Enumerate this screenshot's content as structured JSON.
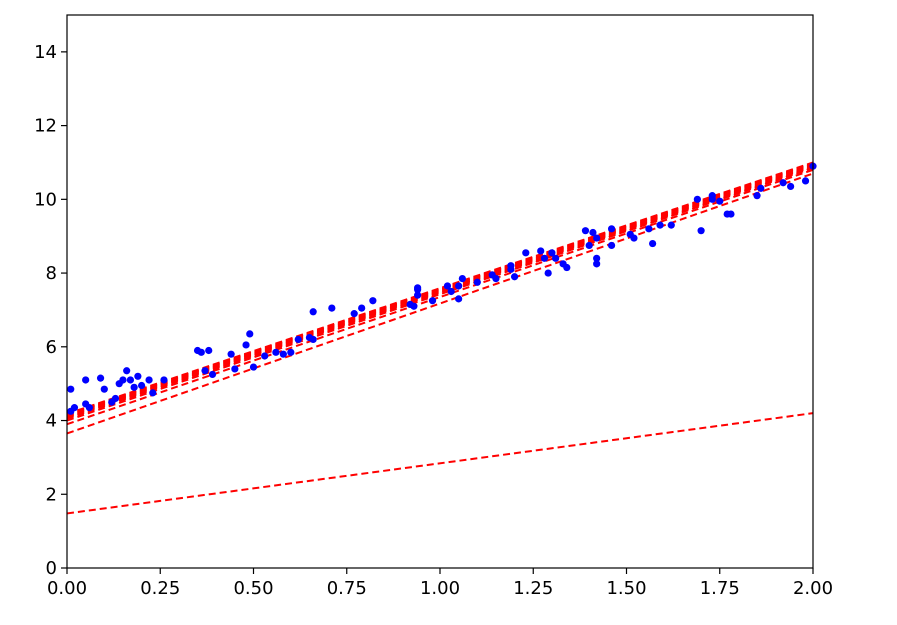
{
  "chart_data": {
    "type": "scatter",
    "title": "",
    "xlabel": "",
    "ylabel": "",
    "xlim": [
      0,
      2
    ],
    "ylim": [
      0,
      15
    ],
    "grid": false,
    "x_ticks": [
      "0.00",
      "0.25",
      "0.50",
      "0.75",
      "1.00",
      "1.25",
      "1.50",
      "1.75",
      "2.00"
    ],
    "y_ticks": [
      "0",
      "2",
      "4",
      "6",
      "8",
      "10",
      "12",
      "14"
    ],
    "x_tick_values": [
      0,
      0.25,
      0.5,
      0.75,
      1.0,
      1.25,
      1.5,
      1.75,
      2.0
    ],
    "y_tick_values": [
      0,
      2,
      4,
      6,
      8,
      10,
      12,
      14
    ],
    "points": {
      "color": "#0000ff",
      "x": [
        0.01,
        0.01,
        0.02,
        0.05,
        0.05,
        0.06,
        0.09,
        0.1,
        0.12,
        0.13,
        0.14,
        0.15,
        0.16,
        0.17,
        0.18,
        0.19,
        0.2,
        0.22,
        0.23,
        0.26,
        0.35,
        0.36,
        0.37,
        0.38,
        0.39,
        0.44,
        0.45,
        0.48,
        0.49,
        0.5,
        0.53,
        0.56,
        0.58,
        0.6,
        0.62,
        0.65,
        0.66,
        0.66,
        0.71,
        0.77,
        0.79,
        0.82,
        0.92,
        0.93,
        0.94,
        0.94,
        0.94,
        0.98,
        1.02,
        1.03,
        1.05,
        1.05,
        1.06,
        1.1,
        1.14,
        1.15,
        1.19,
        1.19,
        1.2,
        1.23,
        1.27,
        1.28,
        1.29,
        1.3,
        1.31,
        1.33,
        1.34,
        1.39,
        1.4,
        1.41,
        1.42,
        1.42,
        1.42,
        1.46,
        1.46,
        1.51,
        1.52,
        1.56,
        1.57,
        1.59,
        1.62,
        1.69,
        1.7,
        1.73,
        1.73,
        1.75,
        1.77,
        1.78,
        1.85,
        1.86,
        1.92,
        1.94,
        1.98,
        2.0
      ],
      "y": [
        4.85,
        4.25,
        4.35,
        4.45,
        5.1,
        4.35,
        5.15,
        4.85,
        4.5,
        4.6,
        5.0,
        5.1,
        5.35,
        5.1,
        4.9,
        5.2,
        4.95,
        5.1,
        4.75,
        5.1,
        5.9,
        5.85,
        5.35,
        5.9,
        5.25,
        5.8,
        5.4,
        6.05,
        6.35,
        5.45,
        5.75,
        5.85,
        5.8,
        5.85,
        6.2,
        6.25,
        6.95,
        6.2,
        7.05,
        6.9,
        7.05,
        7.25,
        7.15,
        7.1,
        7.4,
        7.6,
        7.55,
        7.25,
        7.65,
        7.5,
        7.3,
        7.65,
        7.85,
        7.75,
        7.95,
        7.85,
        8.1,
        8.2,
        7.9,
        8.55,
        8.6,
        8.4,
        8.0,
        8.55,
        8.4,
        8.25,
        8.15,
        9.15,
        8.75,
        9.1,
        8.95,
        8.4,
        8.25,
        9.2,
        8.75,
        9.05,
        8.95,
        9.2,
        8.8,
        9.3,
        9.3,
        10.0,
        9.15,
        10.1,
        10.0,
        9.95,
        9.6,
        9.6,
        10.1,
        10.3,
        10.45,
        10.35,
        10.5,
        10.9
      ]
    },
    "lines": {
      "color": "#ff0000",
      "style": "dashed",
      "series": [
        {
          "y0": 1.48,
          "y1": 4.2
        },
        {
          "y0": 3.65,
          "y1": 10.7
        },
        {
          "y0": 3.9,
          "y1": 10.8
        },
        {
          "y0": 4.0,
          "y1": 10.85
        },
        {
          "y0": 4.05,
          "y1": 10.88
        },
        {
          "y0": 4.08,
          "y1": 10.9
        },
        {
          "y0": 4.1,
          "y1": 10.92
        },
        {
          "y0": 4.12,
          "y1": 10.94
        },
        {
          "y0": 4.14,
          "y1": 10.96
        },
        {
          "y0": 4.16,
          "y1": 10.98
        },
        {
          "y0": 4.18,
          "y1": 11.0
        }
      ]
    }
  }
}
